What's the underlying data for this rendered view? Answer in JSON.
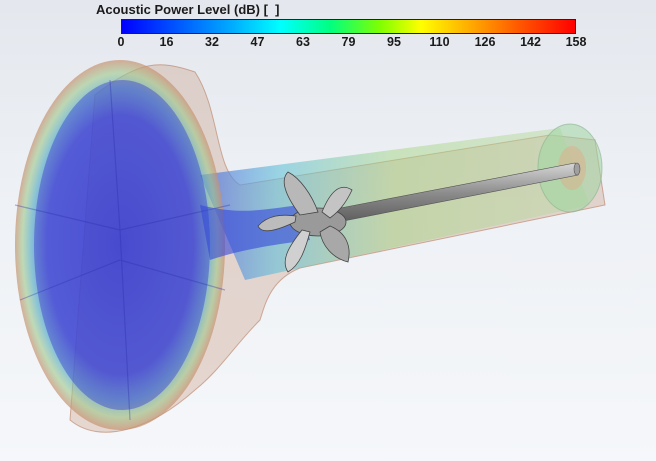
{
  "legend": {
    "title": "Acoustic Power Level (dB) [  ]",
    "ticks": [
      "0",
      "16",
      "32",
      "47",
      "63",
      "79",
      "95",
      "110",
      "126",
      "142",
      "158"
    ],
    "colors": [
      "#0000ff",
      "#00ffff",
      "#00ff80",
      "#ffff00",
      "#ff0000"
    ]
  },
  "scene": {
    "subject": "pump-impeller-rotor-with-intake-bell",
    "shaft_color": "#8c8c8c",
    "background_color": "#eef1f5"
  }
}
